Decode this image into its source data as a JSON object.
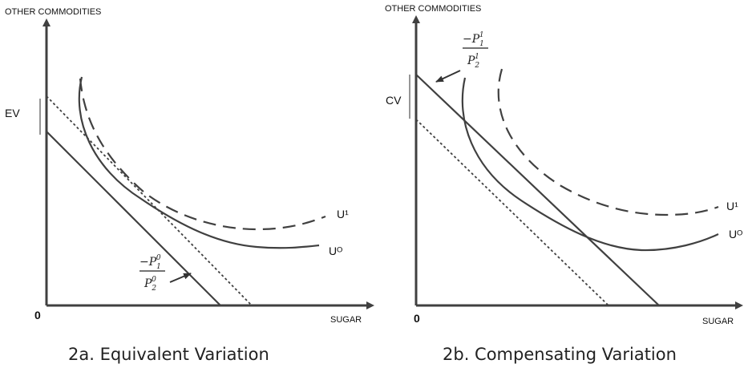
{
  "panel_a": {
    "y_axis_label": "OTHER COMMODITIES",
    "x_axis_label": "SUGAR",
    "origin_label": "0",
    "bracket_label": "EV",
    "u1_label": "U¹",
    "u0_label": "Uᴼ",
    "slope_num_main": "−P",
    "slope_num_sub": "1",
    "slope_num_sup": "0",
    "slope_den_main": "P",
    "slope_den_sub": "2",
    "slope_den_sup": "0",
    "caption": "2a. Equivalent Variation"
  },
  "panel_b": {
    "y_axis_label": "OTHER COMMODITIES",
    "x_axis_label": "SUGAR",
    "origin_label": "0",
    "bracket_label": "CV",
    "u1_label": "U¹",
    "u0_label": "Uᴼ",
    "slope_num_main": "−P",
    "slope_num_sub": "1",
    "slope_num_sup": "1",
    "slope_den_main": "P",
    "slope_den_sub": "2",
    "slope_den_sup": "1",
    "caption": "2b. Compensating Variation"
  }
}
